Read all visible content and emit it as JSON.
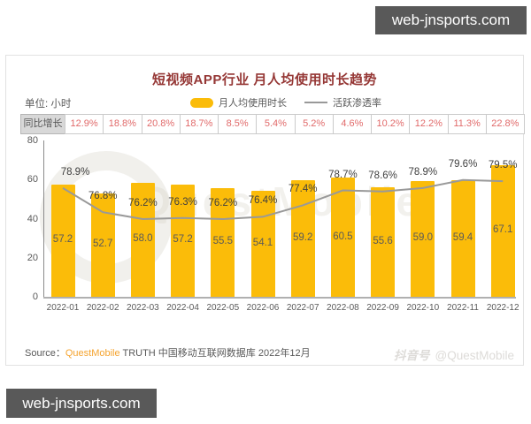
{
  "site_badge": {
    "text": "web-jnsports.com"
  },
  "header": {
    "title": "短视频APP行业 月人均使用时长趋势",
    "unit_label": "单位: 小时"
  },
  "legend": {
    "bar_label": "月人均使用时长",
    "line_label": "活跃渗透率"
  },
  "yoy_row": {
    "label": "同比增长",
    "values": [
      "12.9%",
      "18.8%",
      "20.8%",
      "18.7%",
      "8.5%",
      "5.4%",
      "5.2%",
      "4.6%",
      "10.2%",
      "12.2%",
      "11.3%",
      "22.8%"
    ]
  },
  "chart_data": {
    "type": "bar",
    "title": "短视频APP行业 月人均使用时长趋势",
    "xlabel": "",
    "ylabel": "单位: 小时",
    "categories": [
      "2022-01",
      "2022-02",
      "2022-03",
      "2022-04",
      "2022-05",
      "2022-06",
      "2022-07",
      "2022-08",
      "2022-09",
      "2022-10",
      "2022-11",
      "2022-12"
    ],
    "series": [
      {
        "name": "月人均使用时长",
        "type": "bar",
        "unit": "小时",
        "values": [
          57.2,
          52.7,
          58.0,
          57.2,
          55.5,
          54.1,
          59.2,
          60.5,
          55.6,
          59.0,
          59.4,
          67.1
        ]
      },
      {
        "name": "活跃渗透率",
        "type": "line",
        "unit": "%",
        "values": [
          78.9,
          76.8,
          76.2,
          76.3,
          76.2,
          76.4,
          77.4,
          78.7,
          78.6,
          78.9,
          79.6,
          79.5
        ]
      },
      {
        "name": "同比增长",
        "type": "table-row",
        "unit": "%",
        "values": [
          12.9,
          18.8,
          20.8,
          18.7,
          8.5,
          5.4,
          5.2,
          4.6,
          10.2,
          12.2,
          11.3,
          22.8
        ]
      }
    ],
    "yticks": [
      0,
      20,
      40,
      60,
      80
    ],
    "ylim": [
      0,
      80
    ],
    "grid": false,
    "legend_position": "top-center"
  },
  "colors": {
    "bar_fill": "#fbbc09",
    "line_stroke": "#999999",
    "yoy_text": "#e16a6a",
    "title_text": "#953735",
    "badge_bg": "#595959"
  },
  "footer": {
    "source_prefix": "Source：",
    "source_brand": "QuestMobile",
    "source_rest": " TRUTH 中国移动互联网数据库 2022年12月",
    "watermark_platform": "抖音号",
    "watermark_handle": "@QuestMobile",
    "watermark_brand": "QuestMobile"
  }
}
